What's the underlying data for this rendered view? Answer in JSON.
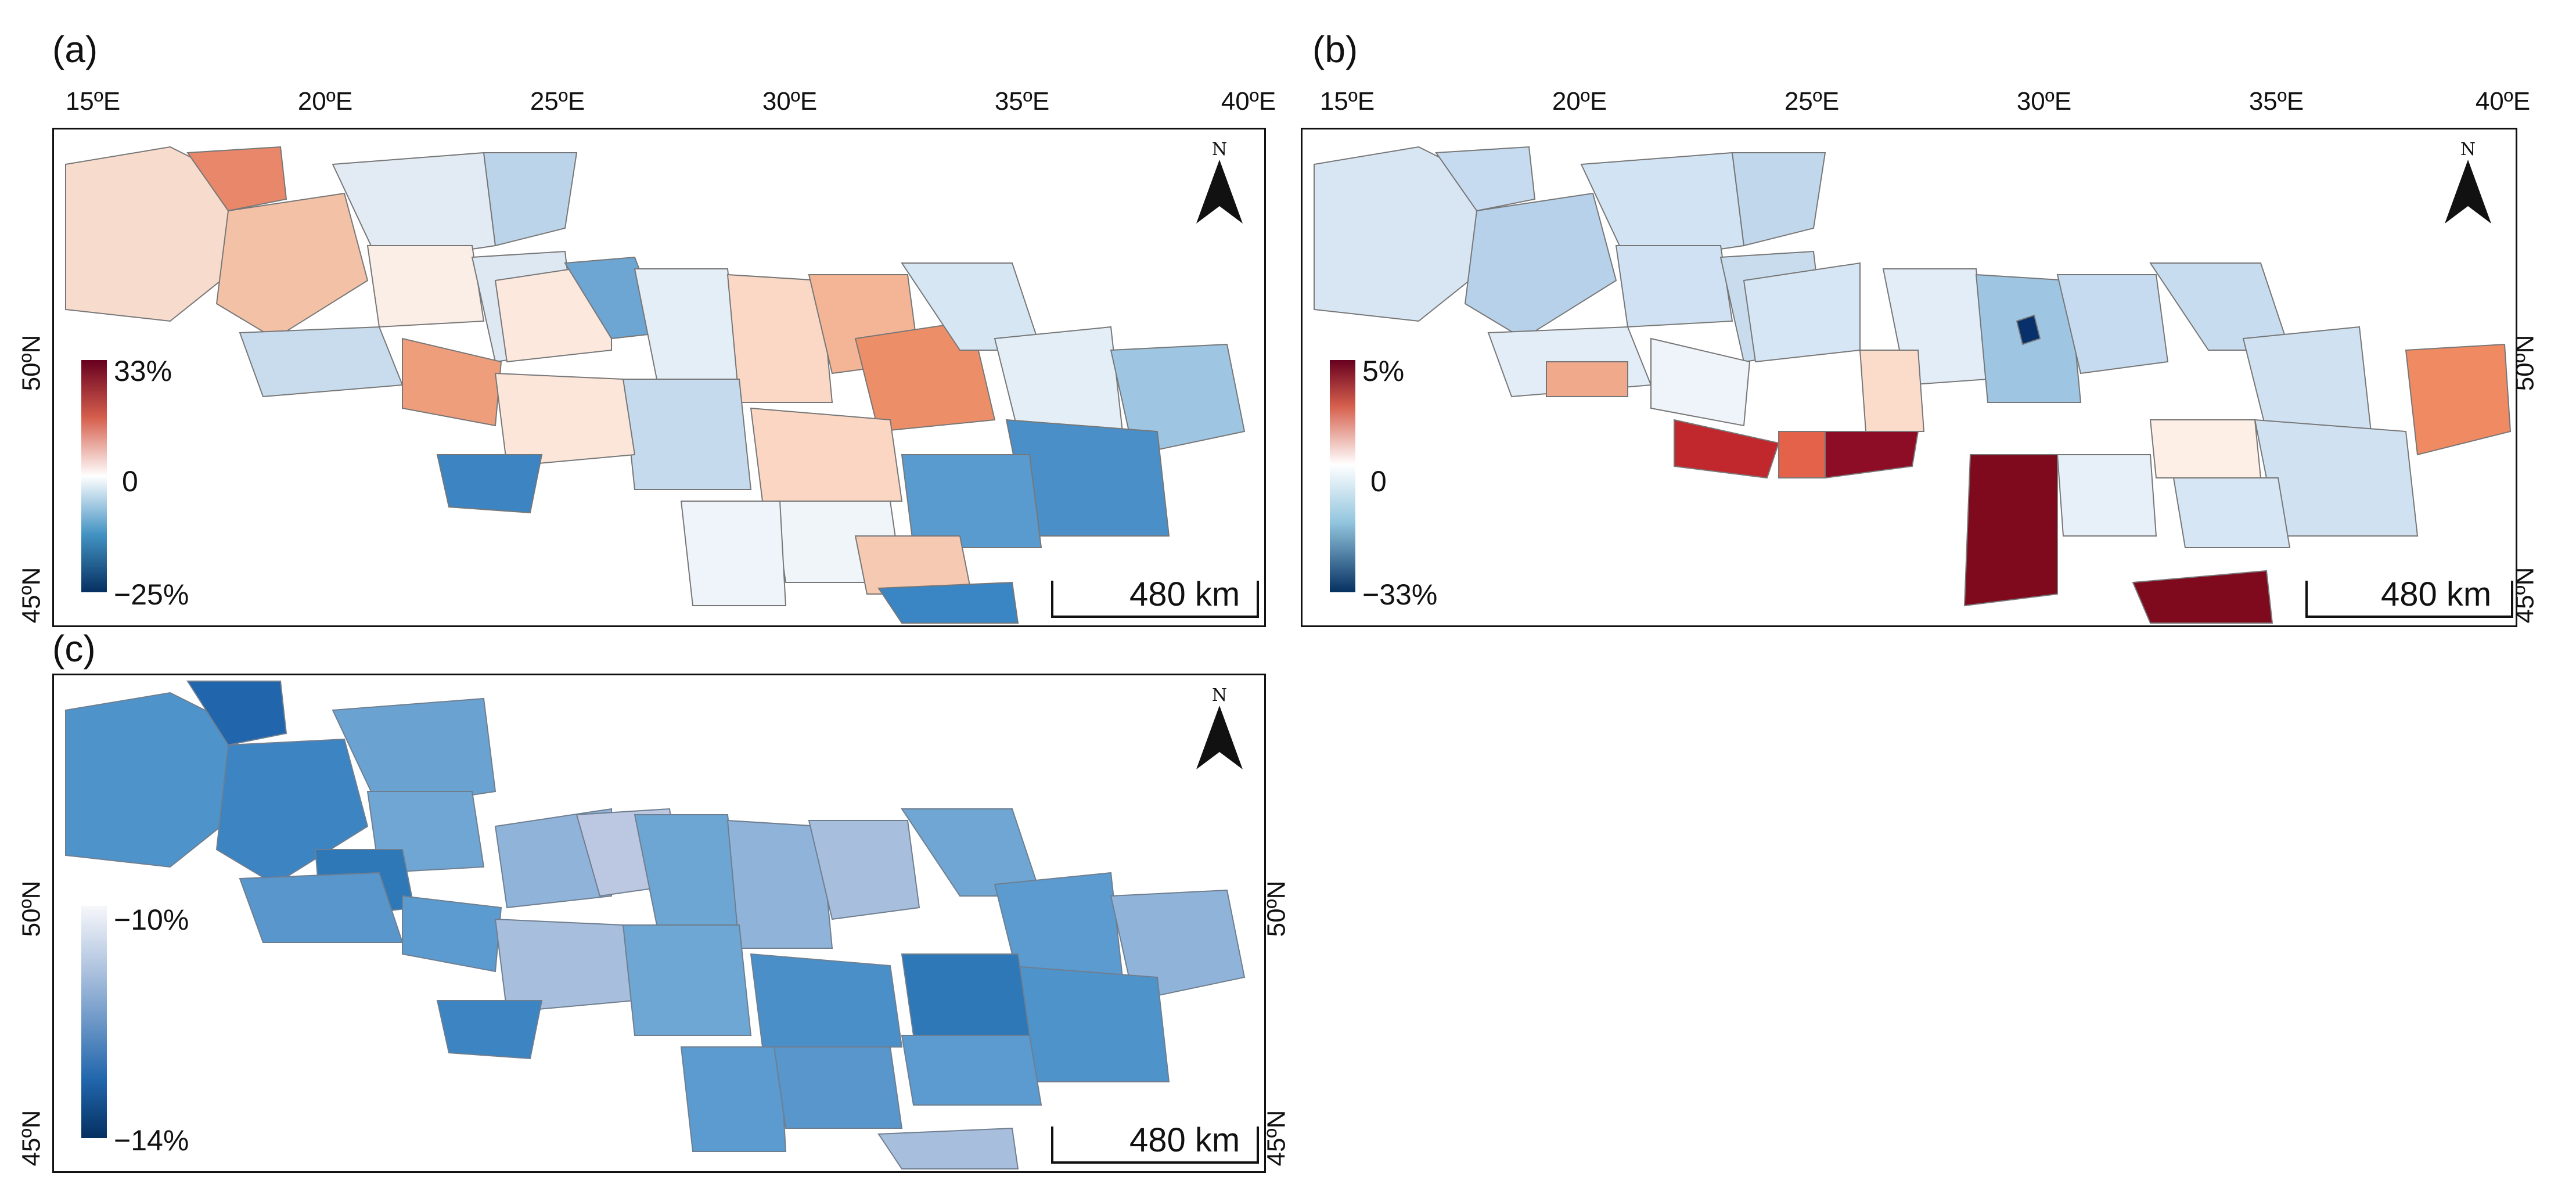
{
  "panels": [
    {
      "label": "(a)",
      "lon_ticks": [
        "15ºE",
        "20ºE",
        "25ºE",
        "30ºE",
        "35ºE",
        "40ºE"
      ],
      "lat_ticks_left": [
        "50ºN",
        "45ºN"
      ],
      "lat_ticks_right": [],
      "legend": {
        "top": "33%",
        "mid": "0",
        "bottom": "−25%",
        "colors": [
          "#67001f",
          "#ffffff",
          "#053061"
        ]
      },
      "scale_label": "480 km",
      "north_label": "N",
      "palette": {
        "poland": "#f4c7b0",
        "west_ukraine": "#c8dcee",
        "east_ukraine": "#4a90c8",
        "crimea": "#3a85c4",
        "hotspot": "#e8876a"
      }
    },
    {
      "label": "(b)",
      "lon_ticks": [
        "15ºE",
        "20ºE",
        "25ºE",
        "30ºE",
        "35ºE",
        "40ºE"
      ],
      "lat_ticks_left": [],
      "lat_ticks_right": [
        "50ºN",
        "45ºN"
      ],
      "legend": {
        "top": "5%",
        "mid": "0",
        "bottom": "−33%",
        "colors": [
          "#67001f",
          "#ffffff",
          "#053061"
        ]
      },
      "scale_label": "480 km",
      "north_label": "N",
      "palette": {
        "poland": "#c6dbef",
        "west_ukraine": "#d1e3f3",
        "south": "#7f0a1e",
        "carpathian": "#c0282e",
        "east": "#f08a62"
      }
    },
    {
      "label": "(c)",
      "lon_ticks": [],
      "lat_ticks_left": [
        "50ºN",
        "45ºN"
      ],
      "lat_ticks_right": [
        "50ºN",
        "45ºN"
      ],
      "legend": {
        "top": "−10%",
        "mid": "",
        "bottom": "−14%",
        "colors": [
          "#f7f7fb",
          "#2166ac",
          "#053061"
        ]
      },
      "scale_label": "480 km",
      "north_label": "N",
      "palette": {
        "poland": "#5b9bcf",
        "ukraine": "#6ea6d4",
        "light": "#a7bedc",
        "dark": "#2e78b8"
      }
    }
  ]
}
